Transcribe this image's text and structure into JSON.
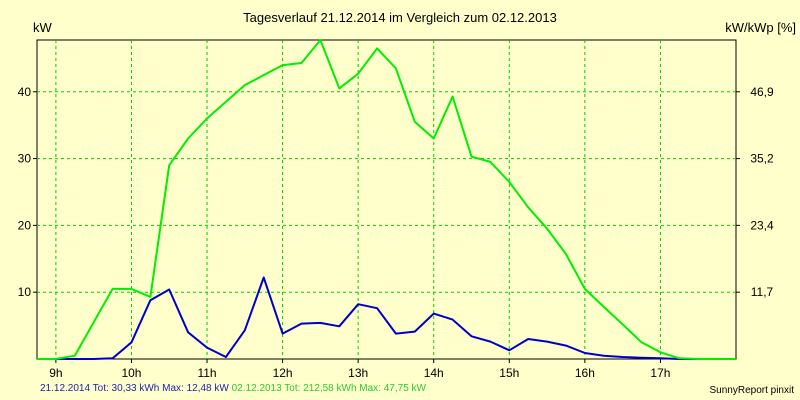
{
  "chart_data": {
    "type": "line",
    "title": "Tagesverlauf 21.12.2014 im Vergleich zum 02.12.2013",
    "ylabel_left": "kW",
    "ylabel_right": "kW/kWp [%]",
    "x_ticks": [
      "9h",
      "10h",
      "11h",
      "12h",
      "13h",
      "14h",
      "15h",
      "16h",
      "17h"
    ],
    "y_ticks_left": [
      10,
      20,
      30,
      40
    ],
    "y_ticks_right": [
      "11,7",
      "23,4",
      "35,2",
      "46,9"
    ],
    "xlim": [
      8.75,
      18.0
    ],
    "ylim": [
      0,
      47.75
    ],
    "grid": true,
    "series": [
      {
        "name": "21.12.2014",
        "color": "#0000cc",
        "x": [
          8.75,
          9.25,
          9.5,
          9.75,
          10.0,
          10.25,
          10.5,
          10.75,
          11.0,
          11.25,
          11.5,
          11.75,
          12.0,
          12.25,
          12.5,
          12.75,
          13.0,
          13.25,
          13.5,
          13.75,
          14.0,
          14.25,
          14.5,
          14.75,
          15.0,
          15.25,
          15.5,
          15.75,
          16.0,
          16.25,
          16.5,
          16.75,
          17.0,
          17.25,
          17.5,
          18.0
        ],
        "values": [
          0,
          0,
          0,
          0.1,
          2.5,
          8.8,
          10.4,
          4.0,
          1.7,
          0.3,
          4.3,
          12.2,
          3.8,
          5.3,
          5.4,
          4.9,
          8.2,
          7.6,
          3.8,
          4.1,
          6.8,
          5.9,
          3.4,
          2.6,
          1.3,
          3.0,
          2.6,
          2.0,
          0.9,
          0.5,
          0.3,
          0.2,
          0.1,
          0,
          0,
          0
        ]
      },
      {
        "name": "02.12.2013",
        "color": "#00ee00",
        "x": [
          8.75,
          9.0,
          9.25,
          9.5,
          9.75,
          10.0,
          10.25,
          10.5,
          10.75,
          11.0,
          11.25,
          11.5,
          11.75,
          12.0,
          12.25,
          12.5,
          12.75,
          13.0,
          13.25,
          13.5,
          13.75,
          14.0,
          14.25,
          14.5,
          14.75,
          15.0,
          15.25,
          15.5,
          15.75,
          16.0,
          16.25,
          16.5,
          16.75,
          17.0,
          17.25,
          17.5,
          18.0
        ],
        "values": [
          0,
          0,
          0.5,
          5.5,
          10.5,
          10.5,
          9.3,
          29.0,
          33.0,
          36.0,
          38.5,
          41.0,
          42.5,
          44.0,
          44.3,
          47.75,
          40.5,
          42.7,
          46.5,
          43.5,
          35.5,
          33.0,
          39.3,
          30.3,
          29.5,
          26.5,
          22.7,
          19.5,
          15.7,
          10.5,
          7.8,
          5.2,
          2.5,
          1.0,
          0.1,
          0,
          0
        ]
      }
    ]
  },
  "footer": {
    "series1_summary": "21.12.2014 Tot: 30,33 kWh Max: 12,48 kW",
    "series2_summary": "02.12.2013 Tot: 212,58 kWh Max: 47,75 kW",
    "credit": "SunnyReport pinxit"
  },
  "colors": {
    "background": "#ffffcc",
    "grid": "#00cc00",
    "series1": "#0000cc",
    "series2": "#00ee00",
    "footer1": "#1e1eb4",
    "footer2": "#32c832"
  }
}
